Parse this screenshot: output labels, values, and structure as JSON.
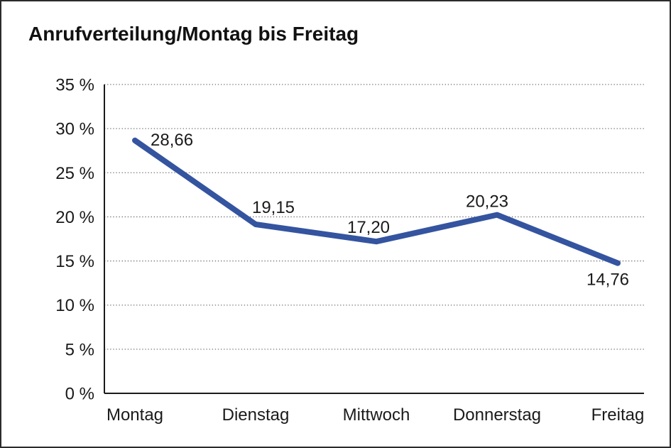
{
  "title": "Anrufverteilung/Montag bis Freitag",
  "chart_data": {
    "type": "line",
    "title": "Anrufverteilung/Montag bis Freitag",
    "categories": [
      "Montag",
      "Dienstag",
      "Mittwoch",
      "Donnerstag",
      "Freitag"
    ],
    "values": [
      28.66,
      19.15,
      17.2,
      20.23,
      14.76
    ],
    "data_labels": [
      "28,66",
      "19,15",
      "17,20",
      "20,23",
      "14,76"
    ],
    "xlabel": "",
    "ylabel": "",
    "ylim": [
      0,
      35
    ],
    "ytick_step": 5,
    "ytick_labels": [
      "0 %",
      "5 %",
      "10 %",
      "15 %",
      "20 %",
      "25 %",
      "30 %",
      "35 %"
    ],
    "grid": "horizontal-dotted",
    "legend": "none",
    "line_color": "#3454a0",
    "axis_color": "#1a1a1a",
    "gridline_color": "#6e6e6e",
    "text_color": "#1a1a1a",
    "background_color": "#ffffff"
  }
}
